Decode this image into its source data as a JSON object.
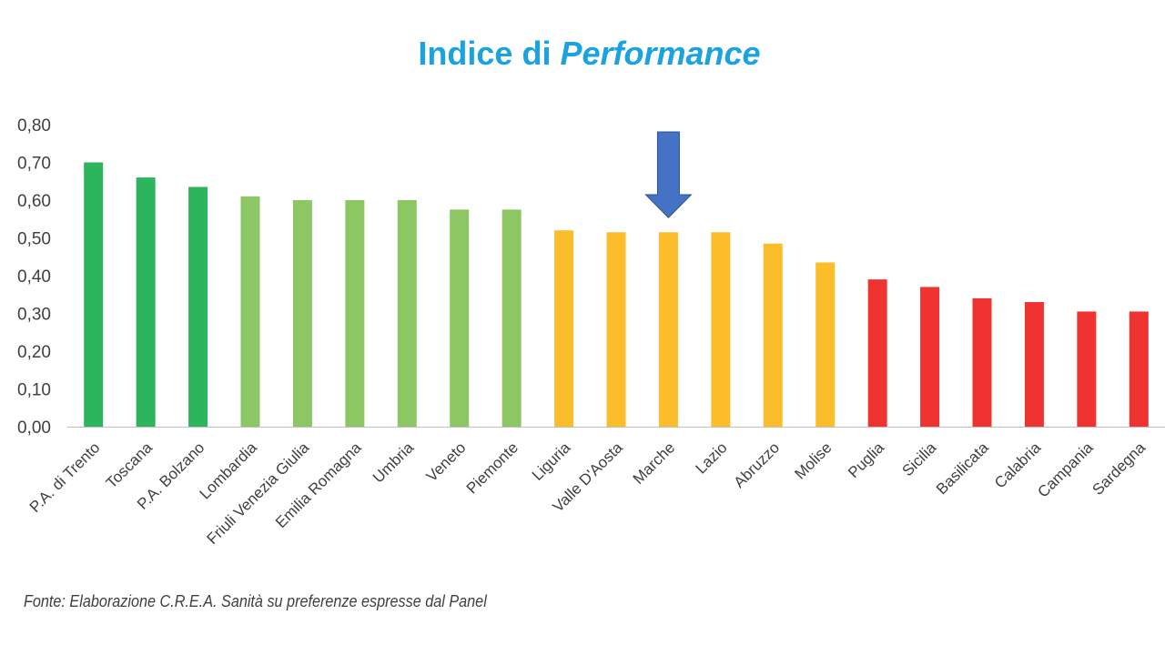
{
  "chart_data": {
    "type": "bar",
    "title_parts": [
      "Indice di ",
      "Performance"
    ],
    "categories": [
      "P.A. di Trento",
      "Toscana",
      "P.A. Bolzano",
      "Lombardia",
      "Friuli Venezia Giulia",
      "Emilia Romagna",
      "Umbria",
      "Veneto",
      "Piemonte",
      "Liguria",
      "Valle D'Aosta",
      "Marche",
      "Lazio",
      "Abruzzo",
      "Molise",
      "Puglia",
      "Sicilia",
      "Basilicata",
      "Calabria",
      "Campania",
      "Sardegna"
    ],
    "values": [
      0.7,
      0.66,
      0.635,
      0.61,
      0.6,
      0.6,
      0.6,
      0.575,
      0.575,
      0.52,
      0.515,
      0.515,
      0.515,
      0.485,
      0.435,
      0.39,
      0.37,
      0.34,
      0.33,
      0.305,
      0.305
    ],
    "bar_colors": [
      "#2db55d",
      "#2db55d",
      "#2db55d",
      "#8cc763",
      "#8cc763",
      "#8cc763",
      "#8cc763",
      "#8cc763",
      "#8cc763",
      "#fbbe2a",
      "#fbbe2a",
      "#fbbe2a",
      "#fbbe2a",
      "#fbbe2a",
      "#fbbe2a",
      "#ef3330",
      "#ef3330",
      "#ef3330",
      "#ef3330",
      "#ef3330",
      "#ef3330"
    ],
    "ylim": [
      0,
      0.8
    ],
    "yticks": [
      "0,00",
      "0,10",
      "0,20",
      "0,30",
      "0,40",
      "0,50",
      "0,60",
      "0,70",
      "0,80"
    ],
    "grid": false,
    "highlight": {
      "category": "Marche",
      "marker": "down-arrow",
      "color": "#4472c4"
    }
  },
  "source_note": "Fonte: Elaborazione C.R.E.A. Sanità su preferenze espresse dal Panel"
}
